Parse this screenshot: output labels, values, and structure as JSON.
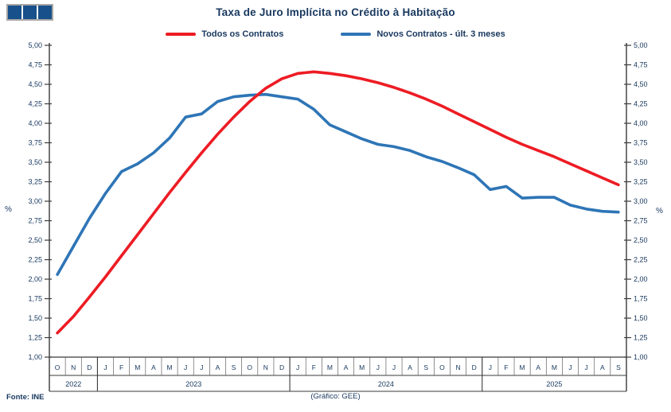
{
  "header": {
    "title": "Taxa de Juro Implícita no Crédito à Habitação"
  },
  "footer": {
    "source": "Fonte: INE",
    "credit": "(Gráfico: GEE)"
  },
  "colors": {
    "title_text": "#17375E",
    "axis": "#3a3a3a",
    "series_all_contracts": "#ED1C24",
    "series_new_contracts": "#2E75B6"
  },
  "chart_data": {
    "type": "line",
    "title": "Taxa de Juro Implícita no Crédito à Habitação",
    "legend_position": "top",
    "grid": false,
    "y_axis": {
      "unit": "%",
      "min": 1.0,
      "max": 5.0,
      "step": 0.25,
      "tick_labels": [
        "5,00",
        "4,75",
        "4,50",
        "4,25",
        "4,00",
        "3,75",
        "3,50",
        "3,25",
        "3,00",
        "2,75",
        "2,50",
        "2,25",
        "2,00",
        "1,75",
        "1,50",
        "1,25",
        "1,00"
      ],
      "left_axis_label": "%",
      "right_axis_label": "%"
    },
    "x_axis": {
      "months": [
        "O",
        "N",
        "D",
        "J",
        "F",
        "M",
        "A",
        "M",
        "J",
        "J",
        "A",
        "S",
        "O",
        "N",
        "D",
        "J",
        "F",
        "M",
        "A",
        "M",
        "J",
        "J",
        "A",
        "S",
        "O",
        "N",
        "D",
        "J",
        "F",
        "M",
        "A",
        "M",
        "J",
        "J",
        "A",
        "S"
      ],
      "year_groups": [
        {
          "label": "2022",
          "start": 0,
          "count": 3
        },
        {
          "label": "2023",
          "start": 3,
          "count": 12
        },
        {
          "label": "2024",
          "start": 15,
          "count": 12
        },
        {
          "label": "2025",
          "start": 27,
          "count": 9
        }
      ]
    },
    "series": [
      {
        "name": "Todos os Contratos",
        "color": "#ED1C24",
        "values": [
          1.31,
          1.52,
          1.77,
          2.03,
          2.3,
          2.57,
          2.84,
          3.11,
          3.37,
          3.62,
          3.86,
          4.08,
          4.28,
          4.45,
          4.57,
          4.64,
          4.66,
          4.64,
          4.61,
          4.57,
          4.52,
          4.46,
          4.39,
          4.31,
          4.22,
          4.12,
          4.02,
          3.92,
          3.82,
          3.73,
          3.65,
          3.57,
          3.48,
          3.39,
          3.3,
          3.21
        ]
      },
      {
        "name": "Novos Contratos - últ. 3 meses",
        "color": "#2E75B6",
        "values": [
          2.06,
          2.42,
          2.78,
          3.1,
          3.38,
          3.48,
          3.62,
          3.81,
          4.08,
          4.12,
          4.28,
          4.34,
          4.36,
          4.37,
          4.34,
          4.31,
          4.18,
          3.98,
          3.89,
          3.8,
          3.73,
          3.7,
          3.65,
          3.57,
          3.51,
          3.43,
          3.34,
          3.15,
          3.19,
          3.04,
          3.05,
          3.05,
          2.95,
          2.9,
          2.87,
          2.86
        ]
      }
    ]
  }
}
